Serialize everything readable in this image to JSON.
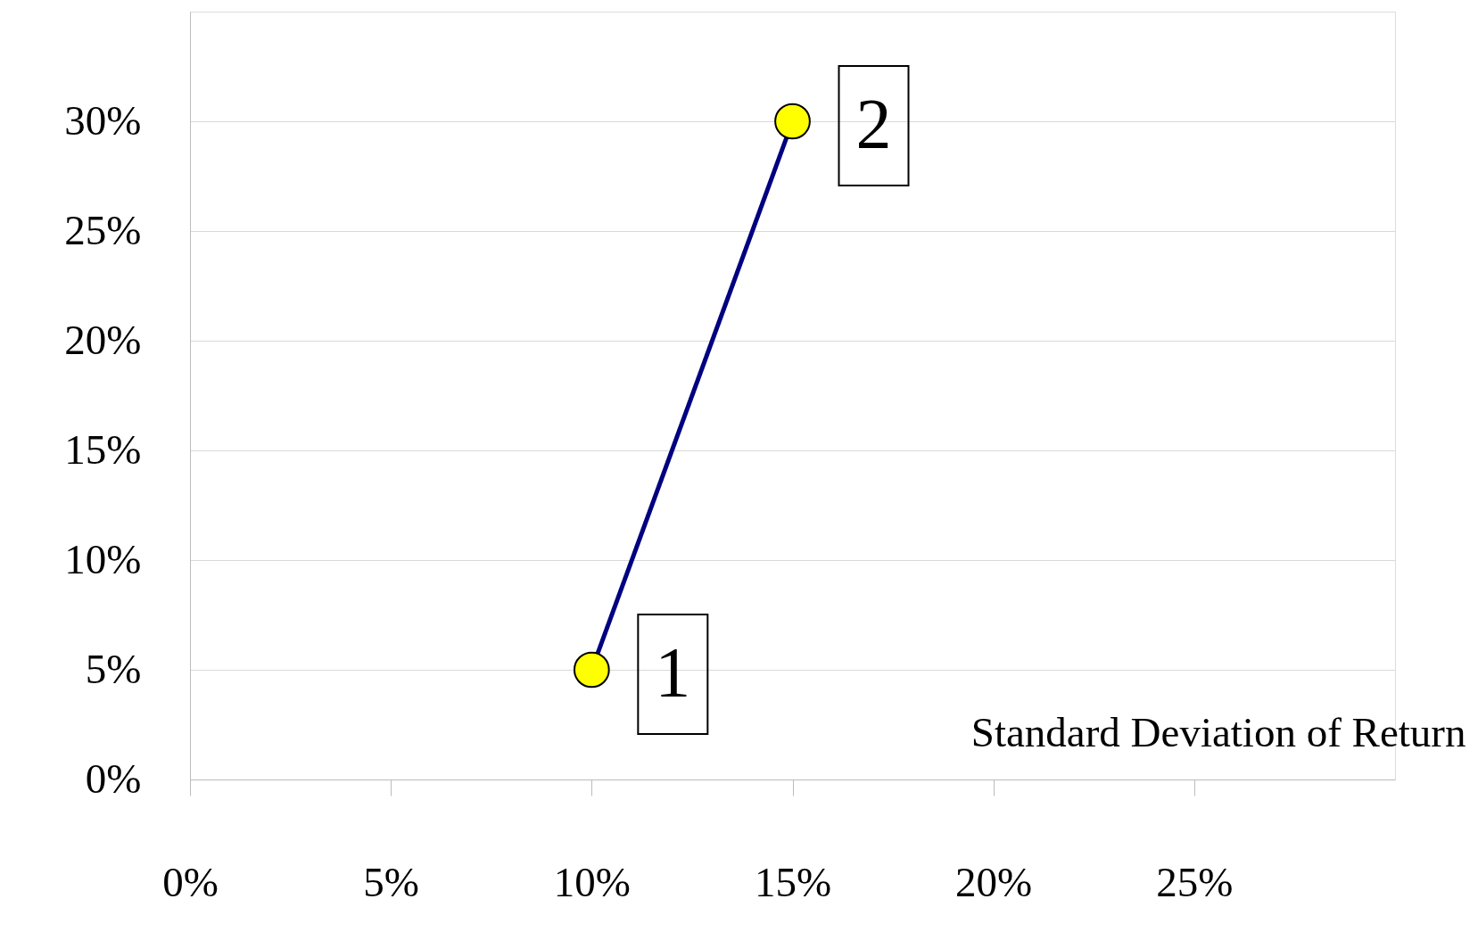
{
  "chart_data": {
    "type": "line",
    "xlabel": "Standard Deviation of Return",
    "x": [
      10,
      15
    ],
    "series": [
      {
        "color": "#000080",
        "colors": [
          "#ffff00",
          "#ffff00"
        ],
        "values": [
          5,
          30
        ]
      }
    ],
    "xlim": [
      0,
      30
    ],
    "ylim": [
      0,
      35
    ],
    "xticks": [
      {
        "value": 0,
        "label": "0%"
      },
      {
        "value": 5,
        "label": "5%"
      },
      {
        "value": 10,
        "label": "10%"
      },
      {
        "value": 15,
        "label": "15%"
      },
      {
        "value": 20,
        "label": "20%"
      },
      {
        "value": 25,
        "label": "25%"
      }
    ],
    "yticks": [
      {
        "value": 0,
        "label": "0%"
      },
      {
        "value": 5,
        "label": "5%"
      },
      {
        "value": 10,
        "label": "10%"
      },
      {
        "value": 15,
        "label": "15%"
      },
      {
        "value": 20,
        "label": "20%"
      },
      {
        "value": 25,
        "label": "25%"
      },
      {
        "value": 30,
        "label": "30%"
      }
    ],
    "annotations": [
      {
        "text": "1",
        "x": 10,
        "y": 5
      },
      {
        "text": "2",
        "x": 15,
        "y": 30
      }
    ],
    "grid": "y",
    "marker": "circle",
    "line_style": "solid"
  }
}
